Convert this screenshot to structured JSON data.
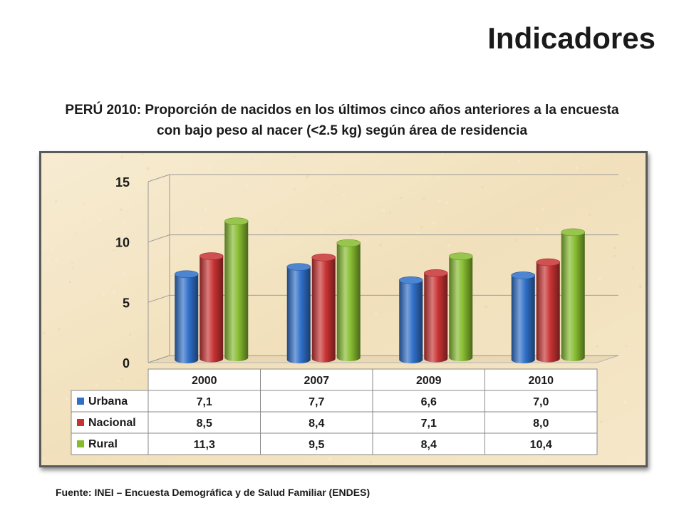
{
  "page": {
    "title": "Indicadores",
    "source": "Fuente: INEI – Encuesta Demográfica y de Salud Familiar (ENDES)"
  },
  "chart_data": {
    "type": "bar",
    "title_lines": [
      "PERÚ 2010: Proporción de nacidos en los últimos cinco años anteriores a la encuesta",
      "con bajo peso al nacer (<2.5 kg) según área de residencia"
    ],
    "categories": [
      "2000",
      "2007",
      "2009",
      "2010"
    ],
    "series": [
      {
        "name": "Urbana",
        "values": [
          7.1,
          7.7,
          6.6,
          7.0
        ],
        "labels": [
          "7,1",
          "7,7",
          "6,6",
          "7,0"
        ],
        "color": "#2f6fc8"
      },
      {
        "name": "Nacional",
        "values": [
          8.5,
          8.4,
          7.1,
          8.0
        ],
        "labels": [
          "8,5",
          "8,4",
          "7,1",
          "8,0"
        ],
        "color": "#c83232"
      },
      {
        "name": "Rural",
        "values": [
          11.3,
          9.5,
          8.4,
          10.4
        ],
        "labels": [
          "11,3",
          "9,5",
          "8,4",
          "10,4"
        ],
        "color": "#86bb2f"
      }
    ],
    "y_ticks": [
      "0",
      "5",
      "10",
      "15"
    ],
    "ylim": [
      0,
      15
    ],
    "grid": true,
    "legend": "data-table",
    "style": "3d-cylinder"
  }
}
